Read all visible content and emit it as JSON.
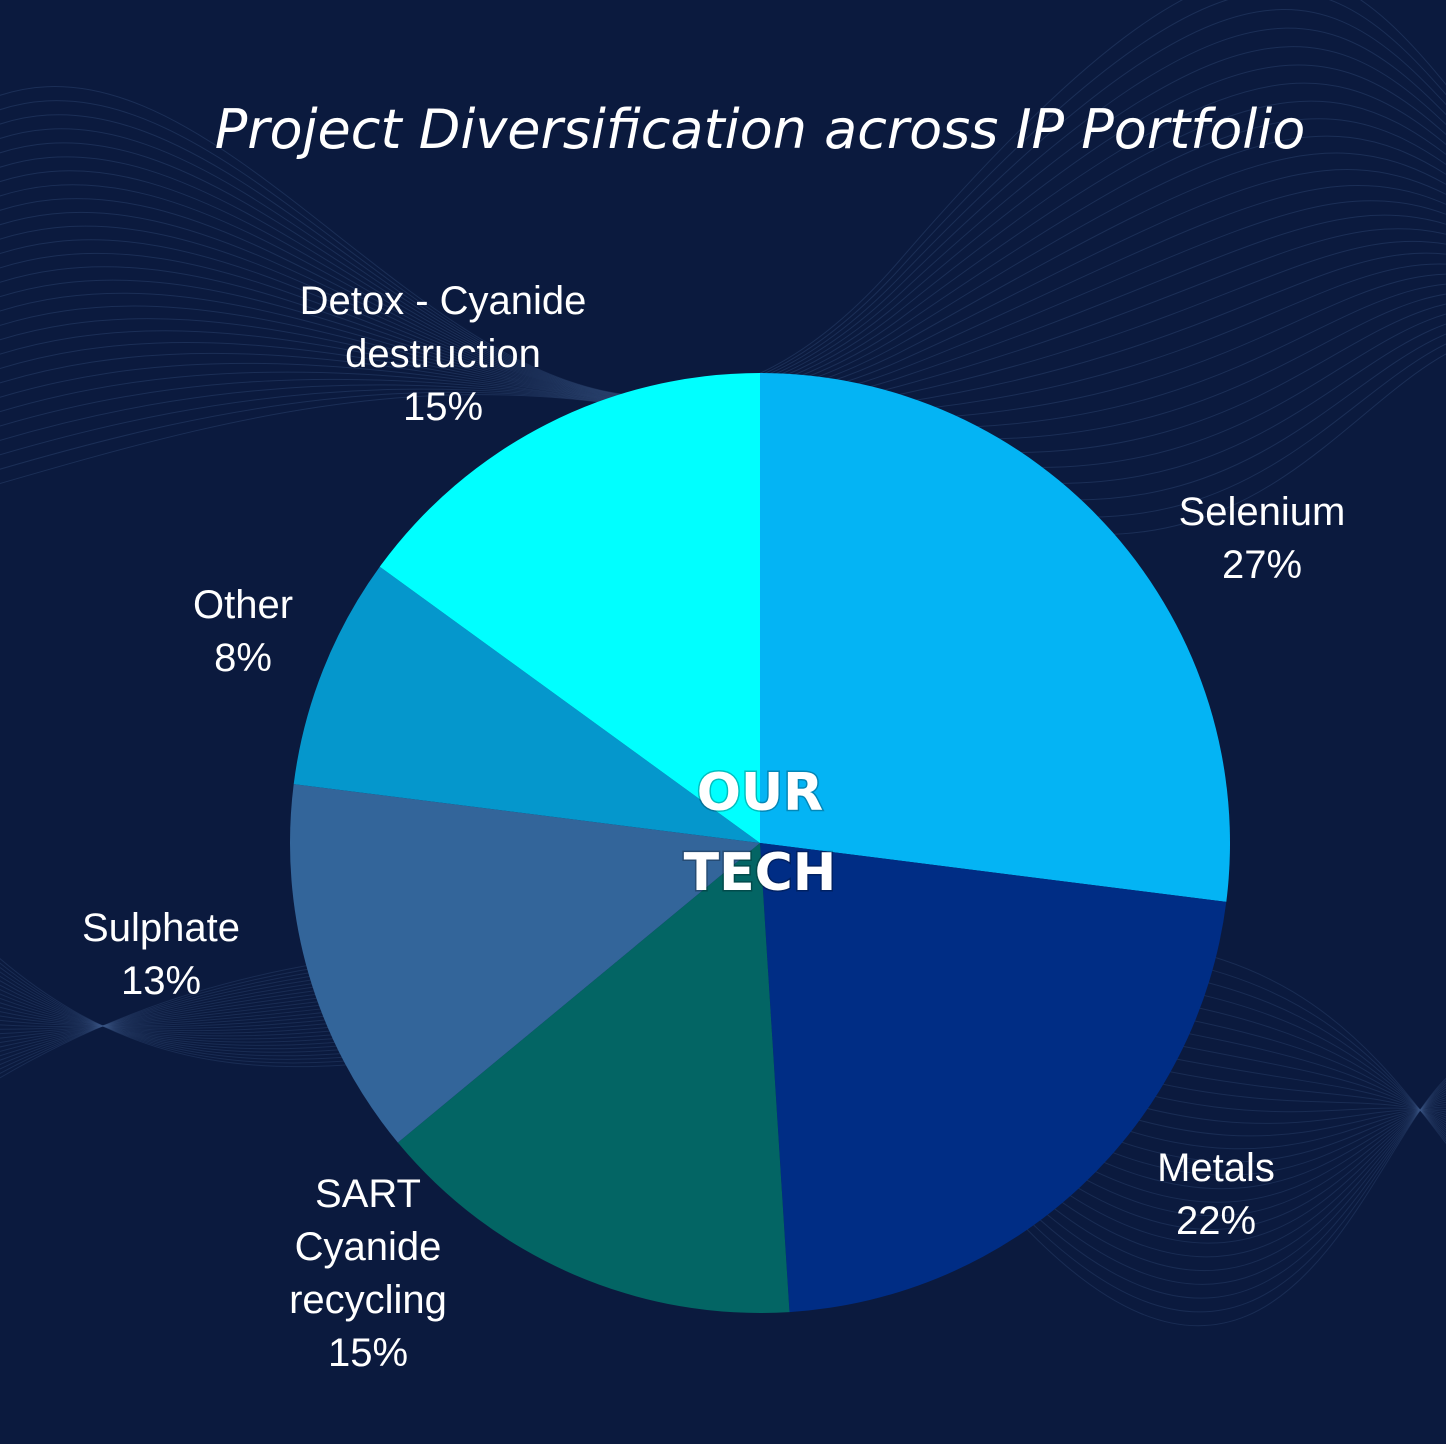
{
  "chart_data": {
    "type": "pie",
    "title": "Project Diversification across IP Portfolio",
    "center_label": [
      "OUR",
      "TECH"
    ],
    "slices": [
      {
        "label": "Selenium",
        "value": 27,
        "value_label": "27%",
        "color": "#04b4f4"
      },
      {
        "label": "Metals",
        "value": 22,
        "value_label": "22%",
        "color": "#002d85"
      },
      {
        "label": "SART Cyanide recycling",
        "value": 15,
        "value_label": "15%",
        "color": "#036564"
      },
      {
        "label": "Sulphate",
        "value": 13,
        "value_label": "13%",
        "color": "#33659a"
      },
      {
        "label": "Other",
        "value": 8,
        "value_label": "8%",
        "color": "#0597cc"
      },
      {
        "label": "Detox - Cyanide destruction",
        "value": 15,
        "value_label": "15%",
        "color": "#00ffff"
      }
    ],
    "background_color": "#0b1a3e",
    "legend": "none"
  }
}
